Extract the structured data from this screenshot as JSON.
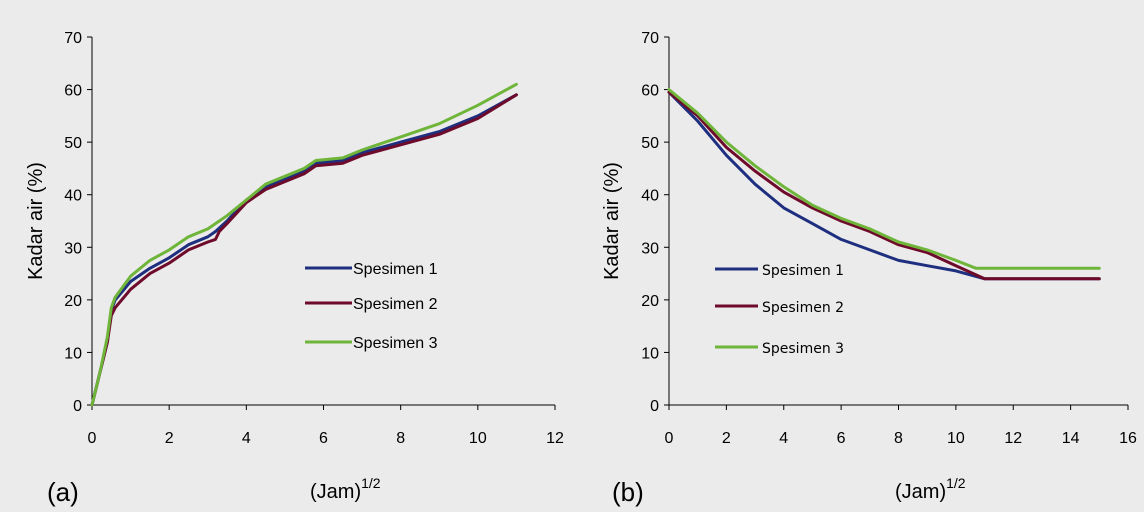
{
  "chart_data": [
    {
      "type": "line",
      "panel_label": "(a)",
      "xlabel": "(Jam)",
      "xlabel_superscript": "1/2",
      "ylabel": "Kadar air (%)",
      "xlim": [
        0,
        12
      ],
      "ylim": [
        0,
        70
      ],
      "xticks": [
        0,
        2,
        4,
        6,
        8,
        10,
        12
      ],
      "yticks": [
        0,
        10,
        20,
        30,
        40,
        50,
        60,
        70
      ],
      "grid": false,
      "legend_position": "center-right",
      "series": [
        {
          "name": "Spesimen 1",
          "color": "#1f2f7f",
          "x": [
            0,
            0.2,
            0.4,
            0.5,
            0.6,
            1,
            1.5,
            2,
            2.5,
            3,
            3.2,
            3.5,
            4,
            4.5,
            5,
            5.5,
            5.8,
            6.5,
            7,
            8,
            9,
            10,
            11
          ],
          "y": [
            0,
            6,
            12,
            18,
            20,
            23.5,
            26,
            28,
            30.5,
            32,
            33,
            35,
            39,
            41.5,
            43,
            44.5,
            46,
            46.5,
            48,
            50,
            52,
            55,
            59
          ]
        },
        {
          "name": "Spesimen 2",
          "color": "#6e0a2a",
          "x": [
            0,
            0.2,
            0.4,
            0.5,
            0.6,
            1,
            1.5,
            2,
            2.5,
            3,
            3.2,
            3.3,
            3.5,
            4,
            4.5,
            5,
            5.5,
            5.8,
            6.5,
            7,
            8,
            9,
            10,
            11
          ],
          "y": [
            0,
            6,
            12,
            17,
            18.5,
            22,
            25,
            27,
            29.5,
            31,
            31.5,
            33,
            34.5,
            38.5,
            41,
            42.5,
            44,
            45.5,
            46,
            47.5,
            49.5,
            51.5,
            54.5,
            59
          ]
        },
        {
          "name": "Spesimen 3",
          "color": "#6fb53a",
          "x": [
            0,
            0.2,
            0.4,
            0.5,
            0.6,
            1,
            1.5,
            2,
            2.5,
            3,
            3.3,
            3.5,
            4,
            4.5,
            5,
            5.5,
            5.8,
            6.5,
            7,
            8,
            9,
            10,
            11
          ],
          "y": [
            0,
            6,
            13,
            18.5,
            20.5,
            24.5,
            27.5,
            29.5,
            32,
            33.5,
            35,
            36,
            39,
            42,
            43.5,
            45,
            46.5,
            47,
            48.5,
            51,
            53.5,
            57,
            61
          ]
        }
      ]
    },
    {
      "type": "line",
      "panel_label": "(b)",
      "xlabel": "(Jam)",
      "xlabel_superscript": "1/2",
      "ylabel": "Kadar air (%)",
      "xlim": [
        0,
        16
      ],
      "ylim": [
        0,
        70
      ],
      "xticks": [
        0,
        2,
        4,
        6,
        8,
        10,
        12,
        14,
        16
      ],
      "yticks": [
        0,
        10,
        20,
        30,
        40,
        50,
        60,
        70
      ],
      "grid": false,
      "legend_position": "center-left",
      "series": [
        {
          "name": "Spesimen 1",
          "color": "#1f2f7f",
          "x": [
            0,
            1,
            2,
            3,
            4,
            5,
            6,
            7,
            8,
            9,
            10,
            11,
            15
          ],
          "y": [
            59.5,
            54,
            47.5,
            42,
            37.5,
            34.5,
            31.5,
            29.5,
            27.5,
            26.5,
            25.5,
            24,
            24
          ]
        },
        {
          "name": "Spesimen 2",
          "color": "#6e0a2a",
          "x": [
            0,
            1,
            2,
            3,
            4,
            5,
            6,
            7,
            8,
            9,
            10,
            11,
            15
          ],
          "y": [
            59.5,
            55,
            49,
            44.5,
            40.5,
            37.5,
            35,
            33,
            30.5,
            29,
            26.5,
            24,
            24
          ]
        },
        {
          "name": "Spesimen 3",
          "color": "#6fb53a",
          "x": [
            0,
            1,
            2,
            3,
            4,
            5,
            6,
            7,
            8,
            9,
            10,
            10.7,
            11,
            15
          ],
          "y": [
            60,
            55.5,
            50,
            45.5,
            41.5,
            38,
            35.5,
            33.5,
            31,
            29.5,
            27.5,
            26,
            26,
            26
          ]
        }
      ]
    }
  ]
}
